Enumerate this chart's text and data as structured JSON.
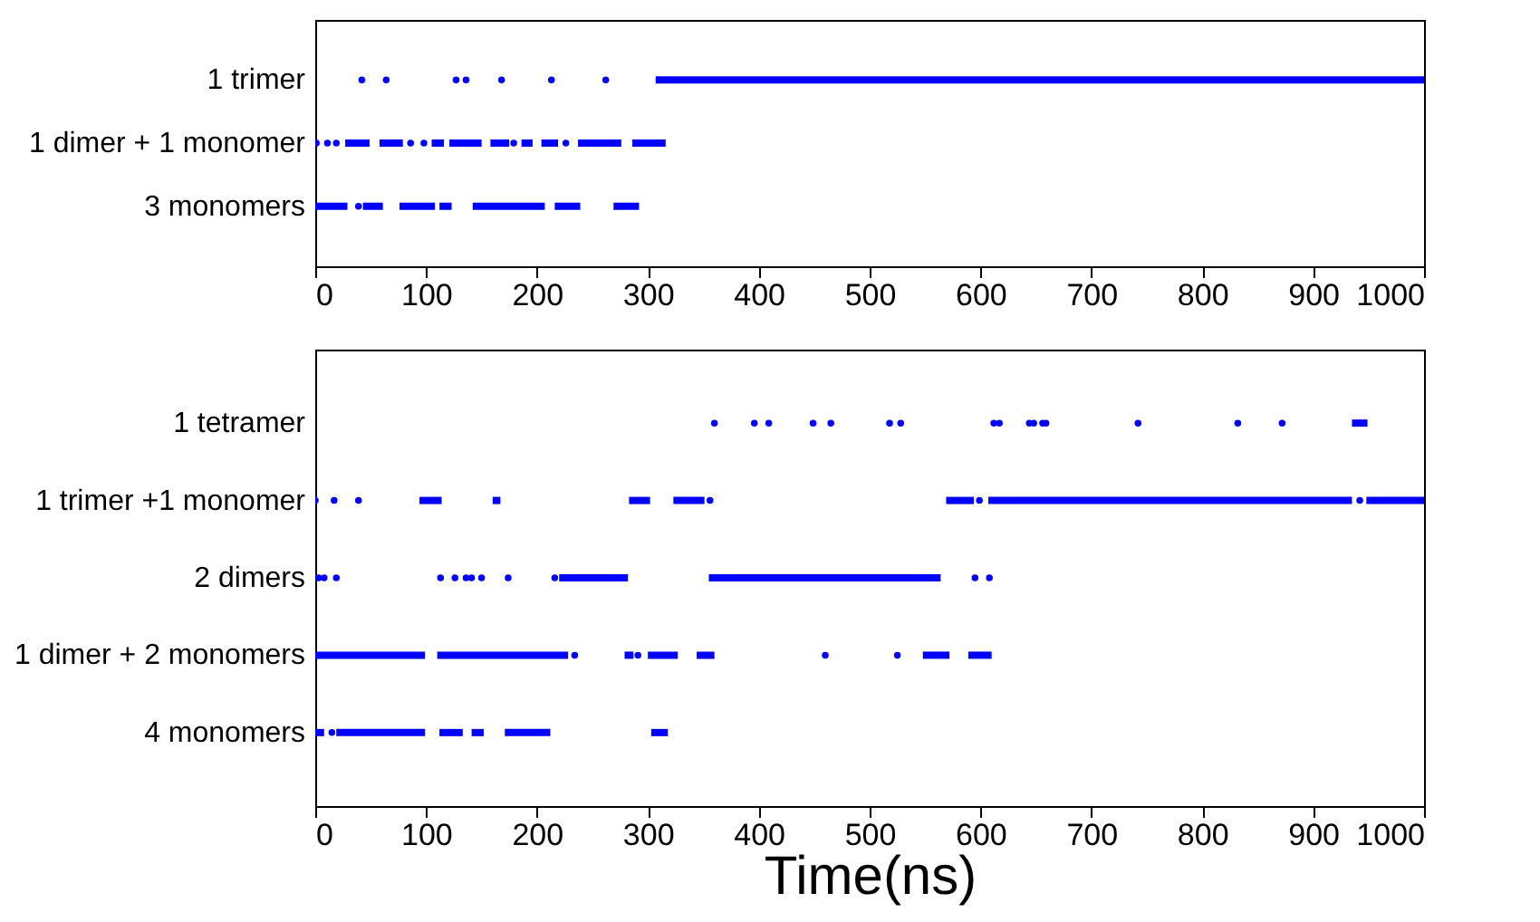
{
  "chart_data": [
    {
      "type": "bar",
      "orientation": "horizontal",
      "categories": [
        "1 trimer",
        "1 dimer + 1 monomer",
        "3 monomers"
      ],
      "xlim": [
        0,
        1000
      ],
      "xticks": [
        0,
        100,
        200,
        300,
        400,
        500,
        600,
        700,
        800,
        900,
        1000
      ],
      "grid": false,
      "marker": "circle",
      "series": [
        {
          "color": "#0000ff",
          "base": [
            307,
            27,
            0
          ],
          "values": [
            693,
            22,
            29
          ]
        },
        {
          "color": "#0000ff",
          "base": [
            null,
            58,
            43
          ],
          "values": [
            null,
            21,
            18
          ]
        },
        {
          "color": "#0000ff",
          "base": [
            null,
            105,
            76
          ],
          "values": [
            null,
            11,
            32
          ]
        },
        {
          "color": "#0000ff",
          "base": [
            null,
            121,
            112
          ],
          "values": [
            null,
            29,
            11
          ]
        },
        {
          "color": "#0000ff",
          "base": [
            null,
            158,
            142
          ],
          "values": [
            null,
            17,
            65
          ]
        },
        {
          "color": "#0000ff",
          "base": [
            null,
            186,
            216
          ],
          "values": [
            null,
            10,
            23
          ]
        },
        {
          "color": "#0000ff",
          "base": [
            null,
            204,
            269
          ],
          "values": [
            null,
            15,
            23
          ]
        },
        {
          "color": "#0000ff",
          "base": [
            null,
            237,
            null
          ],
          "values": [
            null,
            39,
            null
          ]
        },
        {
          "color": "#0000ff",
          "base": [
            null,
            286,
            null
          ],
          "values": [
            null,
            30,
            null
          ]
        },
        {
          "type": "scatter",
          "color": "#0000ff",
          "x": [
            "1 trimer",
            "1 trimer",
            "1 trimer",
            "1 trimer",
            "1 trimer",
            "1 trimer",
            "1 trimer"
          ],
          "values": [
            42,
            64,
            127,
            136,
            168,
            213,
            262
          ]
        },
        {
          "type": "scatter",
          "color": "#0000ff",
          "x": [
            "1 dimer + 1 monomer",
            "1 dimer + 1 monomer",
            "1 dimer + 1 monomer",
            "1 dimer + 1 monomer",
            "1 dimer + 1 monomer",
            "1 dimer + 1 monomer",
            "1 dimer + 1 monomer"
          ],
          "values": [
            1,
            11,
            19,
            86,
            98,
            179,
            226
          ]
        },
        {
          "type": "scatter",
          "color": "#0000ff",
          "x": [
            "3 monomers"
          ],
          "values": [
            39
          ]
        }
      ]
    },
    {
      "type": "bar",
      "orientation": "horizontal",
      "categories": [
        "1 tetramer",
        "1 trimer +1 monomer",
        "2 dimers",
        "1 dimer + 2 monomers",
        "4 monomers"
      ],
      "xlabel": "Time(ns)",
      "xlim": [
        0,
        1000
      ],
      "xticks": [
        0,
        100,
        200,
        300,
        400,
        500,
        600,
        700,
        800,
        900,
        1000
      ],
      "grid": false,
      "marker": "circle",
      "series": [
        {
          "color": "#0000ff",
          "base": [
            935,
            94,
            220,
            0,
            0
          ],
          "values": [
            14,
            20,
            62,
            99,
            8
          ]
        },
        {
          "color": "#0000ff",
          "base": [
            null,
            160,
            355,
            110,
            19
          ],
          "values": [
            null,
            7,
            209,
            118,
            80
          ]
        },
        {
          "color": "#0000ff",
          "base": [
            null,
            283,
            null,
            279,
            112
          ],
          "values": [
            null,
            19,
            null,
            8,
            21
          ]
        },
        {
          "color": "#0000ff",
          "base": [
            null,
            323,
            null,
            300,
            141
          ],
          "values": [
            null,
            28,
            null,
            27,
            11
          ]
        },
        {
          "color": "#0000ff",
          "base": [
            null,
            569,
            null,
            344,
            171
          ],
          "values": [
            null,
            25,
            null,
            16,
            41
          ]
        },
        {
          "color": "#0000ff",
          "base": [
            null,
            607,
            null,
            548,
            303
          ],
          "values": [
            null,
            328,
            null,
            24,
            15
          ]
        },
        {
          "color": "#0000ff",
          "base": [
            null,
            948,
            null,
            589,
            null
          ],
          "values": [
            null,
            52,
            null,
            21,
            null
          ]
        },
        {
          "type": "scatter",
          "color": "#0000ff",
          "x": [
            "1 tetramer",
            "1 tetramer",
            "1 tetramer",
            "1 tetramer",
            "1 tetramer",
            "1 tetramer",
            "1 tetramer",
            "1 tetramer",
            "1 tetramer",
            "1 tetramer",
            "1 tetramer",
            "1 tetramer",
            "1 tetramer",
            "1 tetramer",
            "1 tetramer",
            "1 tetramer"
          ],
          "values": [
            360,
            396,
            409,
            449,
            465,
            518,
            528,
            612,
            617,
            644,
            648,
            656,
            659,
            742,
            832,
            872
          ]
        },
        {
          "type": "scatter",
          "color": "#0000ff",
          "x": [
            "1 trimer +1 monomer",
            "1 trimer +1 monomer",
            "1 trimer +1 monomer",
            "1 trimer +1 monomer",
            "1 trimer +1 monomer",
            "1 trimer +1 monomer"
          ],
          "values": [
            0,
            17,
            39,
            356,
            599,
            942
          ]
        },
        {
          "type": "scatter",
          "color": "#0000ff",
          "x": [
            "2 dimers",
            "2 dimers",
            "2 dimers",
            "2 dimers",
            "2 dimers",
            "2 dimers",
            "2 dimers",
            "2 dimers",
            "2 dimers",
            "2 dimers",
            "2 dimers",
            "2 dimers"
          ],
          "values": [
            3,
            8,
            19,
            113,
            126,
            136,
            141,
            150,
            174,
            216,
            595,
            608
          ]
        },
        {
          "type": "scatter",
          "color": "#0000ff",
          "x": [
            "1 dimer + 2 monomers",
            "1 dimer + 2 monomers",
            "1 dimer + 2 monomers",
            "1 dimer + 2 monomers"
          ],
          "values": [
            234,
            291,
            460,
            525
          ]
        },
        {
          "type": "scatter",
          "color": "#0000ff",
          "x": [
            "4 monomers"
          ],
          "values": [
            15
          ]
        }
      ]
    }
  ]
}
